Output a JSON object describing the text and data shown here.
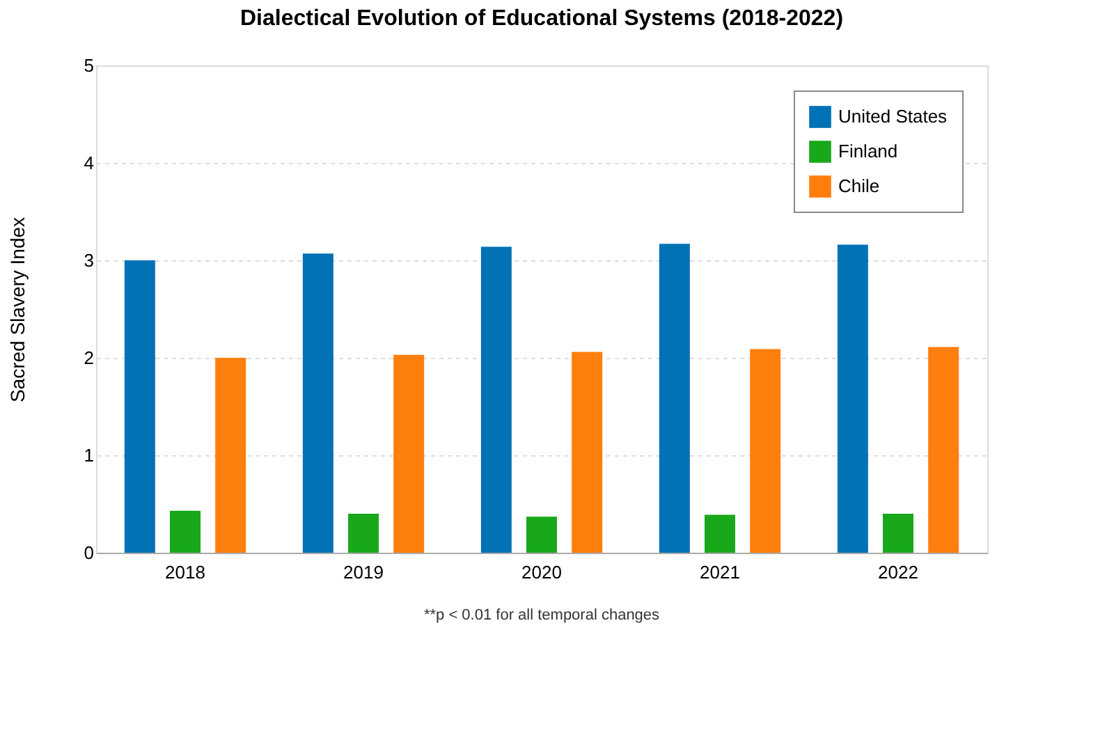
{
  "chart_data": {
    "type": "bar",
    "title": "Dialectical Evolution of Educational Systems (2018-2022)",
    "ylabel": "Sacred Slavery Index",
    "categories": [
      "2018",
      "2019",
      "2020",
      "2021",
      "2022"
    ],
    "series": [
      {
        "name": "United States",
        "color": "#0072b5",
        "values": [
          3.0,
          3.07,
          3.14,
          3.17,
          3.16
        ]
      },
      {
        "name": "Finland",
        "color": "#18a81a",
        "values": [
          0.43,
          0.4,
          0.37,
          0.39,
          0.4
        ]
      },
      {
        "name": "Chile",
        "color": "#ff7f0e",
        "values": [
          2.0,
          2.03,
          2.06,
          2.09,
          2.11
        ]
      }
    ],
    "ylim": [
      0,
      5
    ],
    "yticks": [
      0,
      1,
      2,
      3,
      4,
      5
    ],
    "grid": "y",
    "legend": "top right",
    "annotations": [
      "**p < 0.01 for all temporal changes"
    ]
  }
}
